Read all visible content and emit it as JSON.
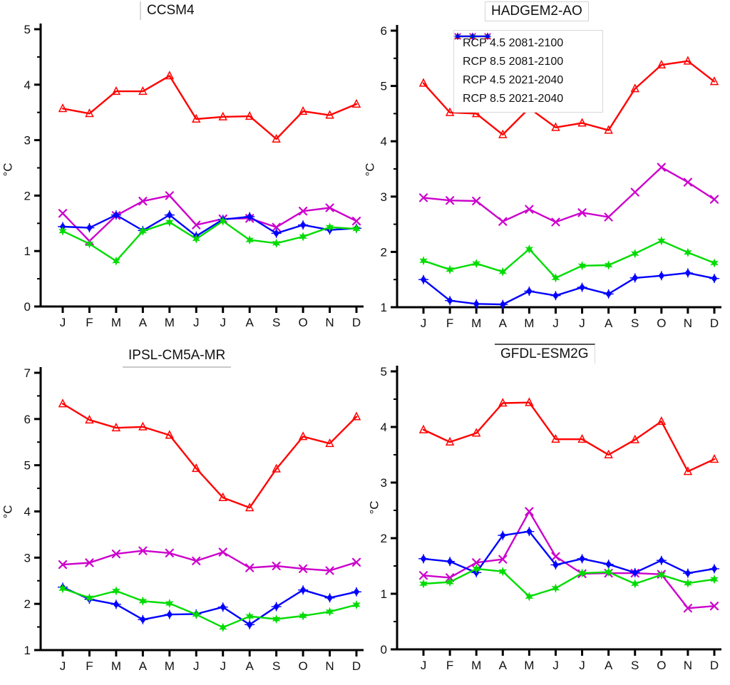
{
  "ylabel": "°C",
  "months": [
    "J",
    "F",
    "M",
    "A",
    "M",
    "J",
    "J",
    "A",
    "S",
    "O",
    "N",
    "D"
  ],
  "legend": {
    "position": "top-right-panel-upper-left",
    "entries": [
      "RCP 4.5 2081-2100",
      "RCP 8.5 2081-2100",
      "RCP 4.5 2021-2040",
      "RCP 8.5 2021-2040"
    ]
  },
  "series_meta": [
    {
      "name": "RCP 4.5 2081-2100",
      "color": "#CC00CC",
      "marker": "x"
    },
    {
      "name": "RCP 8.5 2081-2100",
      "color": "#FF0000",
      "marker": "triangle"
    },
    {
      "name": "RCP 4.5 2021-2040",
      "color": "#00DC00",
      "marker": "star"
    },
    {
      "name": "RCP 8.5 2021-2040",
      "color": "#0000FF",
      "marker": "diamond"
    }
  ],
  "chart_data": [
    {
      "type": "line",
      "title": "CCSM4",
      "xlabel": "",
      "ylabel": "°C",
      "ylim": [
        0,
        5
      ],
      "ytick_step": 1,
      "grid": false,
      "categories": [
        "J",
        "F",
        "M",
        "A",
        "M",
        "J",
        "J",
        "A",
        "S",
        "O",
        "N",
        "D"
      ],
      "series": [
        {
          "name": "RCP 4.5 2081-2100",
          "values": [
            1.68,
            1.18,
            1.64,
            1.9,
            2.0,
            1.47,
            1.58,
            1.59,
            1.43,
            1.72,
            1.78,
            1.54
          ]
        },
        {
          "name": "RCP 8.5 2081-2100",
          "values": [
            3.57,
            3.48,
            3.88,
            3.88,
            4.16,
            3.38,
            3.42,
            3.43,
            3.02,
            3.52,
            3.45,
            3.65
          ]
        },
        {
          "name": "RCP 4.5 2021-2040",
          "values": [
            1.36,
            1.13,
            0.82,
            1.36,
            1.52,
            1.22,
            1.54,
            1.2,
            1.14,
            1.26,
            1.43,
            1.4
          ]
        },
        {
          "name": "RCP 8.5 2021-2040",
          "values": [
            1.44,
            1.42,
            1.65,
            1.37,
            1.65,
            1.27,
            1.57,
            1.62,
            1.32,
            1.47,
            1.38,
            1.41
          ]
        }
      ]
    },
    {
      "type": "line",
      "title": "HADGEM2-AO",
      "xlabel": "",
      "ylabel": "°C",
      "ylim": [
        1,
        6
      ],
      "ytick_step": 1,
      "grid": false,
      "categories": [
        "J",
        "F",
        "M",
        "A",
        "M",
        "J",
        "J",
        "A",
        "S",
        "O",
        "N",
        "D"
      ],
      "series": [
        {
          "name": "RCP 4.5 2081-2100",
          "values": [
            2.98,
            2.93,
            2.92,
            2.55,
            2.77,
            2.54,
            2.71,
            2.63,
            3.08,
            3.53,
            3.26,
            2.95
          ]
        },
        {
          "name": "RCP 8.5 2081-2100",
          "values": [
            5.05,
            4.52,
            4.5,
            4.12,
            4.6,
            4.25,
            4.33,
            4.2,
            4.95,
            5.38,
            5.45,
            5.08
          ]
        },
        {
          "name": "RCP 4.5 2021-2040",
          "values": [
            1.84,
            1.68,
            1.79,
            1.64,
            2.05,
            1.53,
            1.75,
            1.76,
            1.97,
            2.2,
            1.99,
            1.8
          ]
        },
        {
          "name": "RCP 8.5 2021-2040",
          "values": [
            1.5,
            1.12,
            1.06,
            1.05,
            1.29,
            1.21,
            1.36,
            1.24,
            1.53,
            1.57,
            1.62,
            1.52
          ]
        }
      ]
    },
    {
      "type": "line",
      "title": "IPSL-CM5A-MR",
      "xlabel": "",
      "ylabel": "°C",
      "ylim": [
        1,
        7
      ],
      "ytick_step": 1,
      "grid": false,
      "categories": [
        "J",
        "F",
        "M",
        "A",
        "M",
        "J",
        "J",
        "A",
        "S",
        "O",
        "N",
        "D"
      ],
      "series": [
        {
          "name": "RCP 4.5 2081-2100",
          "values": [
            2.85,
            2.89,
            3.08,
            3.15,
            3.1,
            2.93,
            3.12,
            2.78,
            2.82,
            2.76,
            2.72,
            2.9
          ]
        },
        {
          "name": "RCP 8.5 2081-2100",
          "values": [
            6.33,
            5.98,
            5.81,
            5.83,
            5.65,
            4.93,
            4.3,
            4.08,
            4.92,
            5.62,
            5.47,
            6.05
          ]
        },
        {
          "name": "RCP 4.5 2021-2040",
          "values": [
            2.33,
            2.13,
            2.28,
            2.06,
            2.01,
            1.77,
            1.49,
            1.73,
            1.67,
            1.74,
            1.83,
            1.98
          ]
        },
        {
          "name": "RCP 8.5 2021-2040",
          "values": [
            2.36,
            2.1,
            1.99,
            1.66,
            1.77,
            1.78,
            1.93,
            1.55,
            1.94,
            2.3,
            2.13,
            2.26
          ]
        }
      ]
    },
    {
      "type": "line",
      "title": "GFDL-ESM2G",
      "xlabel": "",
      "ylabel": "°C",
      "ylim": [
        0,
        5
      ],
      "ytick_step": 1,
      "grid": false,
      "categories": [
        "J",
        "F",
        "M",
        "A",
        "M",
        "J",
        "J",
        "A",
        "S",
        "O",
        "N",
        "D"
      ],
      "series": [
        {
          "name": "RCP 4.5 2081-2100",
          "values": [
            1.33,
            1.29,
            1.56,
            1.62,
            2.48,
            1.67,
            1.36,
            1.37,
            1.37,
            1.35,
            0.74,
            0.78
          ]
        },
        {
          "name": "RCP 8.5 2081-2100",
          "values": [
            3.95,
            3.73,
            3.89,
            4.43,
            4.44,
            3.78,
            3.78,
            3.5,
            3.77,
            4.1,
            3.2,
            3.42
          ]
        },
        {
          "name": "RCP 4.5 2021-2040",
          "values": [
            1.18,
            1.21,
            1.45,
            1.4,
            0.95,
            1.1,
            1.37,
            1.39,
            1.18,
            1.34,
            1.19,
            1.26
          ]
        },
        {
          "name": "RCP 8.5 2021-2040",
          "values": [
            1.63,
            1.58,
            1.38,
            2.05,
            2.12,
            1.52,
            1.63,
            1.53,
            1.38,
            1.6,
            1.37,
            1.45
          ]
        }
      ]
    }
  ]
}
